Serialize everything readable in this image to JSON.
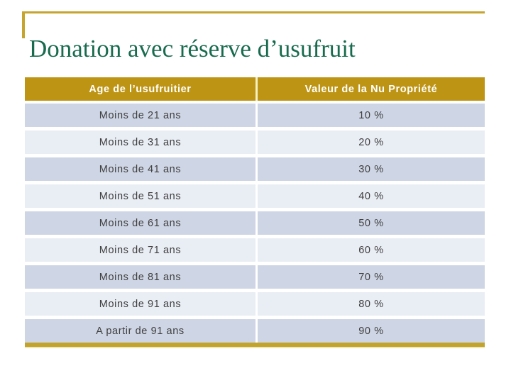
{
  "slide": {
    "title": "Donation avec réserve d’usufruit"
  },
  "chart_data": {
    "type": "table",
    "title": "Donation avec réserve d’usufruit",
    "columns": [
      "Age de l’usufruitier",
      "Valeur de la Nu Propriété"
    ],
    "rows": [
      [
        "Moins de 21 ans",
        "10 %"
      ],
      [
        "Moins de 31 ans",
        "20 %"
      ],
      [
        "Moins de 41 ans",
        "30 %"
      ],
      [
        "Moins de 51 ans",
        "40 %"
      ],
      [
        "Moins de 61 ans",
        "50 %"
      ],
      [
        "Moins de 71 ans",
        "60 %"
      ],
      [
        "Moins de 81 ans",
        "70 %"
      ],
      [
        "Moins de 91 ans",
        "80 %"
      ],
      [
        "A partir de 91 ans",
        "90 %"
      ]
    ]
  },
  "colors": {
    "title_green": "#186B4E",
    "gold_accent": "#C5A42F",
    "header_gold": "#BD9413",
    "header_divider": "#F6F0C2",
    "row_dark": "#CED5E4",
    "row_light": "#E9EDF4",
    "cell_text": "#3F3F3F",
    "header_text": "#FFFFFF",
    "bottom_border_gold": "#C2A32B",
    "bottom_shadow": "#EFE8BC"
  }
}
